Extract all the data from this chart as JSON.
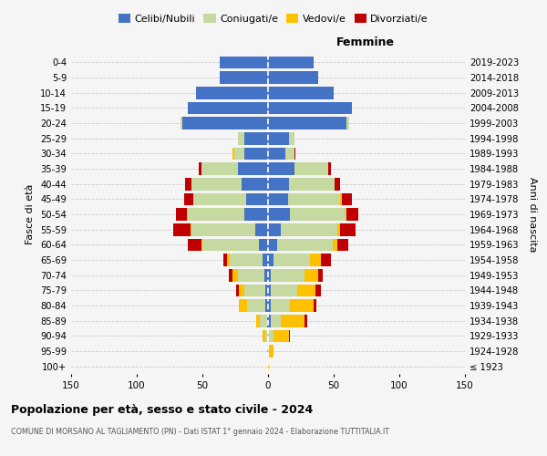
{
  "age_groups": [
    "100+",
    "95-99",
    "90-94",
    "85-89",
    "80-84",
    "75-79",
    "70-74",
    "65-69",
    "60-64",
    "55-59",
    "50-54",
    "45-49",
    "40-44",
    "35-39",
    "30-34",
    "25-29",
    "20-24",
    "15-19",
    "10-14",
    "5-9",
    "0-4"
  ],
  "birth_years": [
    "≤ 1923",
    "1924-1928",
    "1929-1933",
    "1934-1938",
    "1939-1943",
    "1944-1948",
    "1949-1953",
    "1954-1958",
    "1959-1963",
    "1964-1968",
    "1969-1973",
    "1974-1978",
    "1979-1983",
    "1984-1988",
    "1989-1993",
    "1994-1998",
    "1999-2003",
    "2004-2008",
    "2009-2013",
    "2014-2018",
    "2019-2023"
  ],
  "male": {
    "celibi": [
      0,
      0,
      0,
      1,
      2,
      2,
      3,
      4,
      7,
      10,
      18,
      17,
      20,
      23,
      18,
      18,
      65,
      61,
      55,
      37,
      37
    ],
    "coniugati": [
      0,
      0,
      2,
      5,
      14,
      16,
      20,
      25,
      43,
      48,
      43,
      40,
      38,
      28,
      8,
      5,
      2,
      0,
      0,
      0,
      0
    ],
    "vedovi": [
      0,
      1,
      2,
      3,
      6,
      4,
      4,
      2,
      1,
      1,
      1,
      0,
      0,
      0,
      1,
      0,
      0,
      0,
      0,
      0,
      0
    ],
    "divorziati": [
      0,
      0,
      0,
      0,
      0,
      2,
      3,
      3,
      10,
      13,
      8,
      7,
      5,
      2,
      0,
      0,
      0,
      0,
      0,
      0,
      0
    ]
  },
  "female": {
    "nubili": [
      0,
      0,
      0,
      2,
      2,
      2,
      2,
      4,
      7,
      10,
      17,
      15,
      16,
      20,
      13,
      16,
      60,
      64,
      50,
      38,
      35
    ],
    "coniugate": [
      0,
      1,
      4,
      8,
      15,
      20,
      26,
      28,
      42,
      43,
      42,
      40,
      35,
      26,
      7,
      4,
      2,
      0,
      0,
      0,
      0
    ],
    "vedove": [
      1,
      3,
      12,
      18,
      18,
      14,
      10,
      8,
      4,
      2,
      1,
      1,
      0,
      0,
      0,
      0,
      0,
      0,
      0,
      0,
      0
    ],
    "divorziate": [
      0,
      0,
      1,
      2,
      2,
      4,
      4,
      8,
      8,
      12,
      9,
      8,
      4,
      2,
      1,
      0,
      0,
      0,
      0,
      0,
      0
    ]
  },
  "colors": {
    "celibi": "#4472c4",
    "coniugati": "#c5d9a0",
    "vedovi": "#ffc000",
    "divorziati": "#c00000"
  },
  "xlim": 150,
  "title": "Popolazione per età, sesso e stato civile - 2024",
  "subtitle": "COMUNE DI MORSANO AL TAGLIAMENTO (PN) - Dati ISTAT 1° gennaio 2024 - Elaborazione TUTTITALIA.IT",
  "xlabel_right": "Femmine",
  "ylabel_left": "Fasce di età",
  "ylabel_right": "Anni di nascita",
  "legend_labels": [
    "Celibi/Nubili",
    "Coniugati/e",
    "Vedovi/e",
    "Divorziati/e"
  ],
  "bg_color": "#f5f5f5",
  "grid_color": "#cccccc"
}
